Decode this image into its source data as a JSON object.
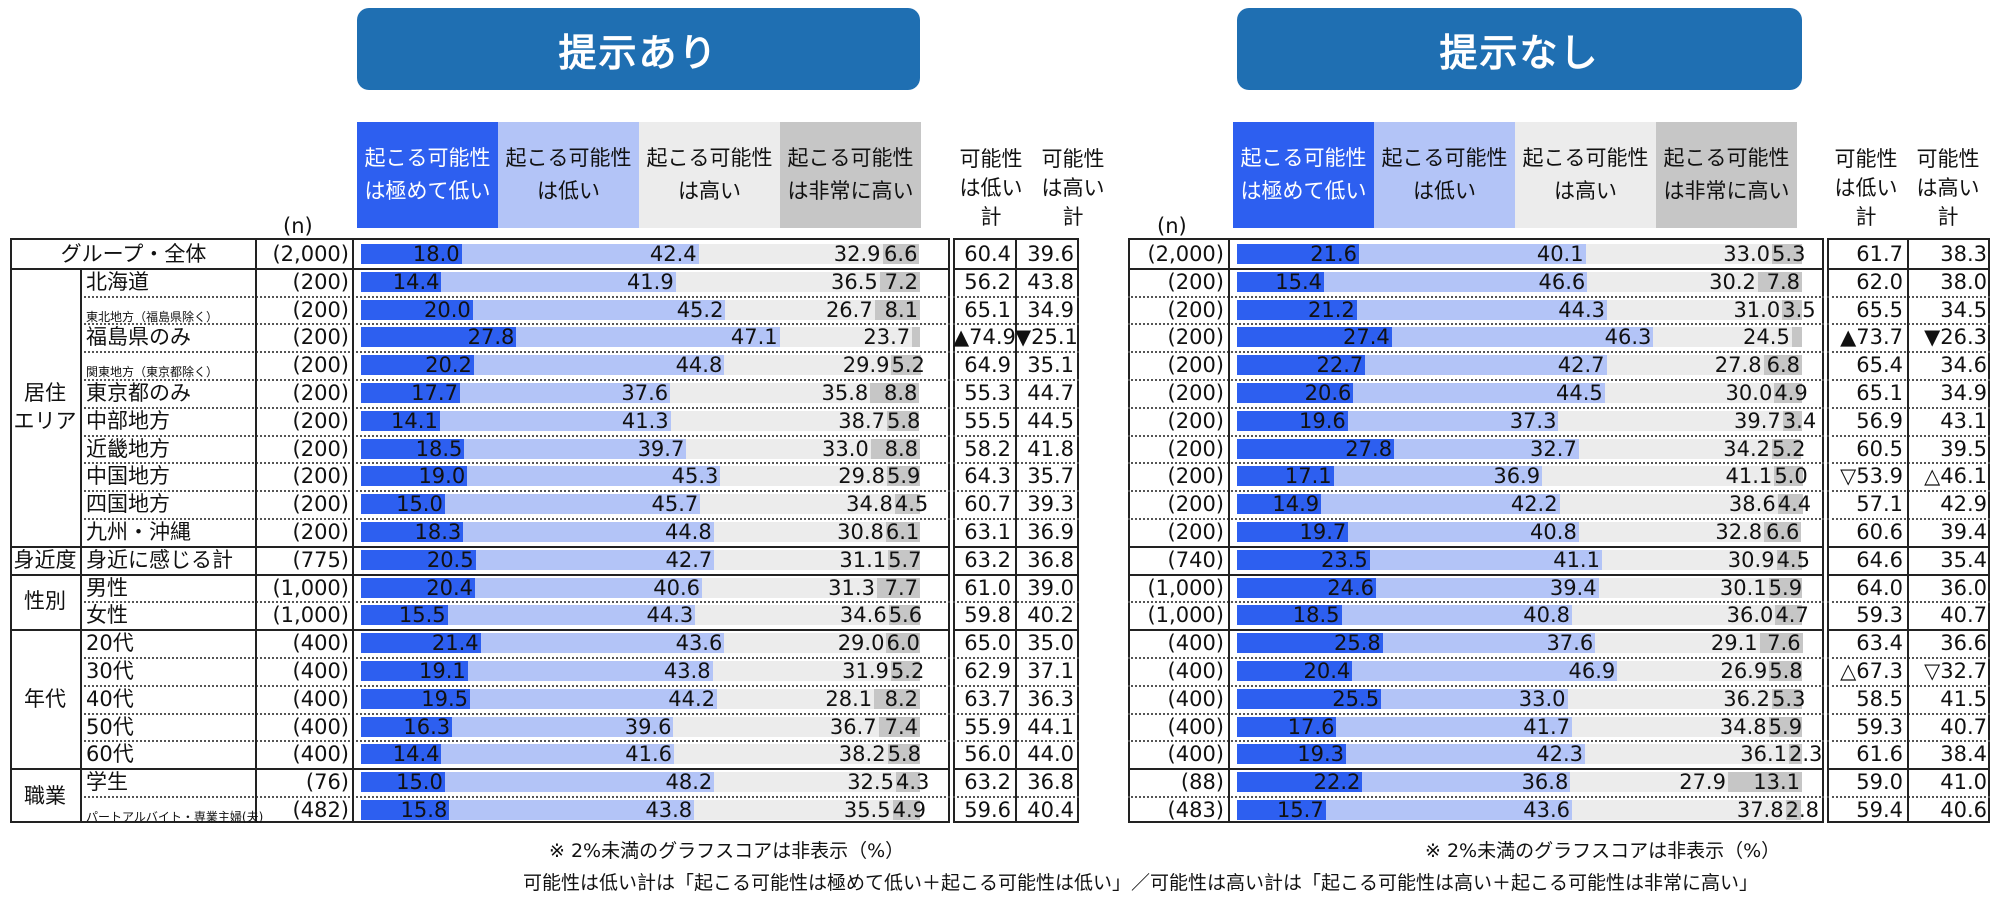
{
  "banners": {
    "left": "提示あり",
    "right": "提示なし"
  },
  "legend": [
    {
      "l1": "起こる可能性",
      "l2": "は極めて低い",
      "color": "#2d5ff0",
      "text": "#ffffff"
    },
    {
      "l1": "起こる可能性",
      "l2": "は低い",
      "color": "#b3c4f7",
      "text": "#111111"
    },
    {
      "l1": "起こる可能性",
      "l2": "は高い",
      "color": "#ececec",
      "text": "#111111"
    },
    {
      "l1": "起こる可能性",
      "l2": "は非常に高い",
      "color": "#c6c6c6",
      "text": "#111111"
    }
  ],
  "n_label": "(n)",
  "sum_headers": [
    {
      "l1": "可能性",
      "l2": "は低い",
      "l3": "計"
    },
    {
      "l1": "可能性",
      "l2": "は高い",
      "l3": "計"
    }
  ],
  "categories": [
    {
      "name": "居住\nエリア",
      "l1": "居住",
      "l2": "エリア",
      "start": 1,
      "end": 10
    },
    {
      "name": "身近度",
      "l1": "身近度",
      "l2": "",
      "start": 11,
      "end": 11
    },
    {
      "name": "性別",
      "l1": "性別",
      "l2": "",
      "start": 12,
      "end": 13
    },
    {
      "name": "年代",
      "l1": "年代",
      "l2": "",
      "start": 14,
      "end": 18
    },
    {
      "name": "職業",
      "l1": "職業",
      "l2": "",
      "start": 19,
      "end": 20
    }
  ],
  "chart_data": {
    "type": "bar",
    "stacked": true,
    "unit": "%",
    "series_names": [
      "起こる可能性は極めて低い",
      "起こる可能性は低い",
      "起こる可能性は高い",
      "起こる可能性は非常に高い"
    ],
    "rows": [
      {
        "label": "グループ・全体",
        "top": true,
        "small": false,
        "nL": "(2,000)",
        "L": [
          18.0,
          42.4,
          32.9,
          6.6
        ],
        "LsumLow": "60.4",
        "LsumHigh": "39.6",
        "nR": "(2,000)",
        "R": [
          21.6,
          40.1,
          33.0,
          5.3
        ],
        "RsumLow": "61.7",
        "RsumHigh": "38.3"
      },
      {
        "label": "北海道",
        "small": false,
        "nL": "(200)",
        "L": [
          14.4,
          41.9,
          36.5,
          7.2
        ],
        "LsumLow": "56.2",
        "LsumHigh": "43.8",
        "nR": "(200)",
        "R": [
          15.4,
          46.6,
          30.2,
          7.8
        ],
        "RsumLow": "62.0",
        "RsumHigh": "38.0"
      },
      {
        "label": "東北地方（福島県除く）",
        "small": true,
        "nL": "(200)",
        "L": [
          20.0,
          45.2,
          26.7,
          8.1
        ],
        "LsumLow": "65.1",
        "LsumHigh": "34.9",
        "nR": "(200)",
        "R": [
          21.2,
          44.3,
          31.0,
          3.5
        ],
        "RsumLow": "65.5",
        "RsumHigh": "34.5"
      },
      {
        "label": "福島県のみ",
        "small": false,
        "nL": "(200)",
        "L": [
          27.8,
          47.1,
          23.7,
          1.4
        ],
        "LsumLow": "▲74.9",
        "LsumHigh": "▼25.1",
        "nR": "(200)",
        "R": [
          27.4,
          46.3,
          24.5,
          1.8
        ],
        "RsumLow": "▲73.7",
        "RsumHigh": "▼26.3"
      },
      {
        "label": "関東地方（東京都除く）",
        "small": true,
        "nL": "(200)",
        "L": [
          20.2,
          44.8,
          29.9,
          5.2
        ],
        "LsumLow": "64.9",
        "LsumHigh": "35.1",
        "nR": "(200)",
        "R": [
          22.7,
          42.7,
          27.8,
          6.8
        ],
        "RsumLow": "65.4",
        "RsumHigh": "34.6"
      },
      {
        "label": "東京都のみ",
        "small": false,
        "nL": "(200)",
        "L": [
          17.7,
          37.6,
          35.8,
          8.8
        ],
        "LsumLow": "55.3",
        "LsumHigh": "44.7",
        "nR": "(200)",
        "R": [
          20.6,
          44.5,
          30.0,
          4.9
        ],
        "RsumLow": "65.1",
        "RsumHigh": "34.9"
      },
      {
        "label": "中部地方",
        "small": false,
        "nL": "(200)",
        "L": [
          14.1,
          41.3,
          38.7,
          5.8
        ],
        "LsumLow": "55.5",
        "LsumHigh": "44.5",
        "nR": "(200)",
        "R": [
          19.6,
          37.3,
          39.7,
          3.4
        ],
        "RsumLow": "56.9",
        "RsumHigh": "43.1"
      },
      {
        "label": "近畿地方",
        "small": false,
        "nL": "(200)",
        "L": [
          18.5,
          39.7,
          33.0,
          8.8
        ],
        "LsumLow": "58.2",
        "LsumHigh": "41.8",
        "nR": "(200)",
        "R": [
          27.8,
          32.7,
          34.2,
          5.2
        ],
        "RsumLow": "60.5",
        "RsumHigh": "39.5"
      },
      {
        "label": "中国地方",
        "small": false,
        "nL": "(200)",
        "L": [
          19.0,
          45.3,
          29.8,
          5.9
        ],
        "LsumLow": "64.3",
        "LsumHigh": "35.7",
        "nR": "(200)",
        "R": [
          17.1,
          36.9,
          41.1,
          5.0
        ],
        "RsumLow": "▽53.9",
        "RsumHigh": "△46.1"
      },
      {
        "label": "四国地方",
        "small": false,
        "nL": "(200)",
        "L": [
          15.0,
          45.7,
          34.8,
          4.5
        ],
        "LsumLow": "60.7",
        "LsumHigh": "39.3",
        "nR": "(200)",
        "R": [
          14.9,
          42.2,
          38.6,
          4.4
        ],
        "RsumLow": "57.1",
        "RsumHigh": "42.9"
      },
      {
        "label": "九州・沖縄",
        "small": false,
        "nL": "(200)",
        "L": [
          18.3,
          44.8,
          30.8,
          6.1
        ],
        "LsumLow": "63.1",
        "LsumHigh": "36.9",
        "nR": "(200)",
        "R": [
          19.7,
          40.8,
          32.8,
          6.6
        ],
        "RsumLow": "60.6",
        "RsumHigh": "39.4"
      },
      {
        "label": "身近に感じる計",
        "small": false,
        "nL": "(775)",
        "L": [
          20.5,
          42.7,
          31.1,
          5.7
        ],
        "LsumLow": "63.2",
        "LsumHigh": "36.8",
        "nR": "(740)",
        "R": [
          23.5,
          41.1,
          30.9,
          4.5
        ],
        "RsumLow": "64.6",
        "RsumHigh": "35.4"
      },
      {
        "label": "男性",
        "small": false,
        "nL": "(1,000)",
        "L": [
          20.4,
          40.6,
          31.3,
          7.7
        ],
        "LsumLow": "61.0",
        "LsumHigh": "39.0",
        "nR": "(1,000)",
        "R": [
          24.6,
          39.4,
          30.1,
          5.9
        ],
        "RsumLow": "64.0",
        "RsumHigh": "36.0"
      },
      {
        "label": "女性",
        "small": false,
        "nL": "(1,000)",
        "L": [
          15.5,
          44.3,
          34.6,
          5.6
        ],
        "LsumLow": "59.8",
        "LsumHigh": "40.2",
        "nR": "(1,000)",
        "R": [
          18.5,
          40.8,
          36.0,
          4.7
        ],
        "RsumLow": "59.3",
        "RsumHigh": "40.7"
      },
      {
        "label": "20代",
        "small": false,
        "nL": "(400)",
        "L": [
          21.4,
          43.6,
          29.0,
          6.0
        ],
        "LsumLow": "65.0",
        "LsumHigh": "35.0",
        "nR": "(400)",
        "R": [
          25.8,
          37.6,
          29.1,
          7.6
        ],
        "RsumLow": "63.4",
        "RsumHigh": "36.6"
      },
      {
        "label": "30代",
        "small": false,
        "nL": "(400)",
        "L": [
          19.1,
          43.8,
          31.9,
          5.2
        ],
        "LsumLow": "62.9",
        "LsumHigh": "37.1",
        "nR": "(400)",
        "R": [
          20.4,
          46.9,
          26.9,
          5.8
        ],
        "RsumLow": "△67.3",
        "RsumHigh": "▽32.7"
      },
      {
        "label": "40代",
        "small": false,
        "nL": "(400)",
        "L": [
          19.5,
          44.2,
          28.1,
          8.2
        ],
        "LsumLow": "63.7",
        "LsumHigh": "36.3",
        "nR": "(400)",
        "R": [
          25.5,
          33.0,
          36.2,
          5.3
        ],
        "RsumLow": "58.5",
        "RsumHigh": "41.5"
      },
      {
        "label": "50代",
        "small": false,
        "nL": "(400)",
        "L": [
          16.3,
          39.6,
          36.7,
          7.4
        ],
        "LsumLow": "55.9",
        "LsumHigh": "44.1",
        "nR": "(400)",
        "R": [
          17.6,
          41.7,
          34.8,
          5.9
        ],
        "RsumLow": "59.3",
        "RsumHigh": "40.7"
      },
      {
        "label": "60代",
        "small": false,
        "nL": "(400)",
        "L": [
          14.4,
          41.6,
          38.2,
          5.8
        ],
        "LsumLow": "56.0",
        "LsumHigh": "44.0",
        "nR": "(400)",
        "R": [
          19.3,
          42.3,
          36.1,
          2.3
        ],
        "RsumLow": "61.6",
        "RsumHigh": "38.4"
      },
      {
        "label": "学生",
        "small": false,
        "nL": "(76)",
        "L": [
          15.0,
          48.2,
          32.5,
          4.3
        ],
        "LsumLow": "63.2",
        "LsumHigh": "36.8",
        "nR": "(88)",
        "R": [
          22.2,
          36.8,
          27.9,
          13.1
        ],
        "RsumLow": "59.0",
        "RsumHigh": "41.0"
      },
      {
        "label": "パートアルバイト・専業主婦(夫)",
        "small": true,
        "nL": "(482)",
        "L": [
          15.8,
          43.8,
          35.5,
          4.9
        ],
        "LsumLow": "59.6",
        "LsumHigh": "40.4",
        "nR": "(483)",
        "R": [
          15.7,
          43.6,
          37.8,
          2.8
        ],
        "RsumLow": "59.4",
        "RsumHigh": "40.6"
      }
    ]
  },
  "notes": {
    "left": "※ 2%未満のグラフスコアは非表示（%）",
    "right": "※ 2%未満のグラフスコアは非表示（%）",
    "bottom": "可能性は低い計は「起こる可能性は極めて低い＋起こる可能性は低い」／可能性は高い計は「起こる可能性は高い＋起こる可能性は非常に高い」"
  }
}
